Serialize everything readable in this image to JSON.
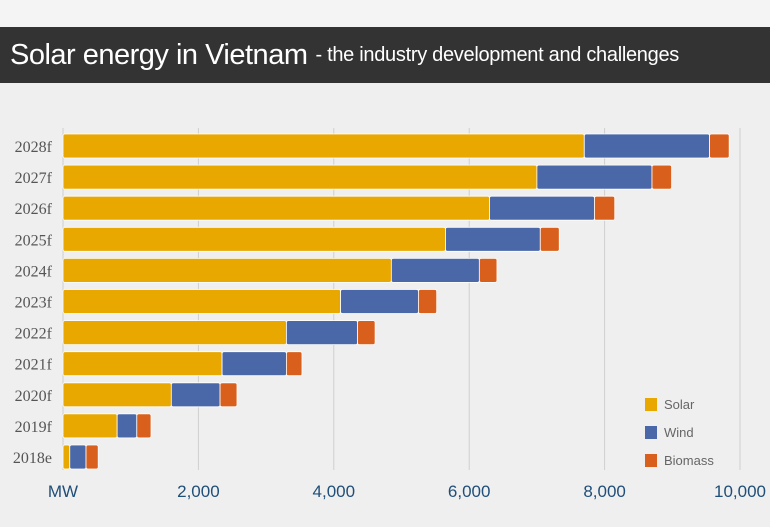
{
  "header": {
    "title": "Solar energy in Vietnam",
    "subtitle": "- the industry development and challenges"
  },
  "chart_data": {
    "type": "bar",
    "orientation": "horizontal",
    "stacked": true,
    "categories": [
      "2028f",
      "2027f",
      "2026f",
      "2025f",
      "2024f",
      "2023f",
      "2022f",
      "2021f",
      "2020f",
      "2019f",
      "2018e"
    ],
    "series": [
      {
        "name": "Solar",
        "color": "#e8a800",
        "values": [
          7700,
          7000,
          6300,
          5650,
          4850,
          4100,
          3300,
          2350,
          1600,
          800,
          100
        ]
      },
      {
        "name": "Wind",
        "color": "#4a68a8",
        "values": [
          1850,
          1700,
          1550,
          1400,
          1300,
          1150,
          1050,
          950,
          720,
          290,
          240
        ]
      },
      {
        "name": "Biomass",
        "color": "#d8601c",
        "values": [
          290,
          290,
          300,
          280,
          260,
          270,
          260,
          230,
          250,
          210,
          180
        ]
      }
    ],
    "xlabel": "MW",
    "xlim": [
      0,
      10000
    ],
    "xticks": [
      {
        "value": 0,
        "label": "MW"
      },
      {
        "value": 2000,
        "label": "2,000"
      },
      {
        "value": 4000,
        "label": "4,000"
      },
      {
        "value": 6000,
        "label": "6,000"
      },
      {
        "value": 8000,
        "label": "8,000"
      },
      {
        "value": 10000,
        "label": "10,000"
      }
    ],
    "grid": true,
    "legend": "bottom-right"
  }
}
